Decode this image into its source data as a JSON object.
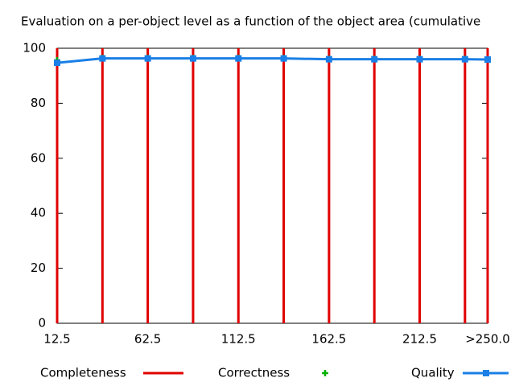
{
  "chart_data": {
    "type": "line",
    "title": "Evaluation on a per-object level as a function of the object area (cumulative",
    "x": [
      12.5,
      37.5,
      62.5,
      87.5,
      112.5,
      137.5,
      162.5,
      187.5,
      212.5,
      237.5,
      250
    ],
    "xlim": [
      12.5,
      250
    ],
    "xticks": [
      12.5,
      62.5,
      112.5,
      162.5,
      212.5,
      {
        "value": 250,
        "label": ">250.0"
      }
    ],
    "ylim": [
      0,
      100
    ],
    "yticks": [
      0,
      20,
      40,
      60,
      80,
      100
    ],
    "legend": "bottom",
    "series": [
      {
        "name": "Completeness",
        "color": "#e00000",
        "style": "impulses",
        "values": [
          100,
          100,
          100,
          100,
          100,
          100,
          100,
          100,
          100,
          100,
          100
        ]
      },
      {
        "name": "Correctness",
        "color": "#00b000",
        "style": "points",
        "values": [
          95.6,
          96.4,
          96.4,
          96.4,
          96.4,
          96.4,
          96.1,
          96.1,
          96.1,
          96.1,
          95.9
        ]
      },
      {
        "name": "Quality",
        "color": "#1a7fe6",
        "style": "linespoints",
        "values": [
          94.7,
          96.3,
          96.3,
          96.3,
          96.3,
          96.3,
          96.0,
          96.0,
          96.0,
          96.0,
          95.9
        ]
      }
    ]
  }
}
